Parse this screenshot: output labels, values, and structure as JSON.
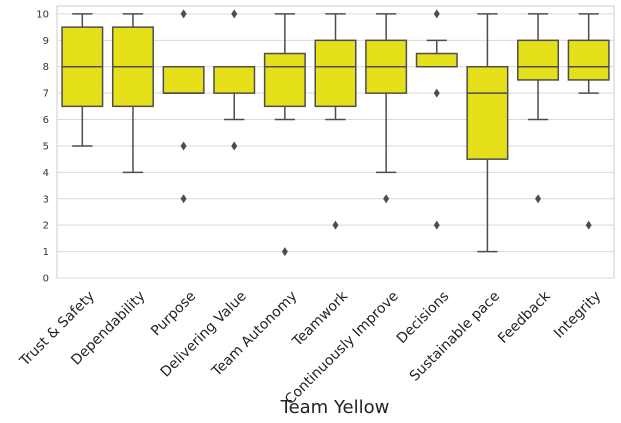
{
  "chart_data": {
    "type": "box",
    "title": "",
    "xlabel": "Team Yellow",
    "ylabel": "",
    "ylim": [
      0,
      10.3
    ],
    "yticks": [
      0,
      1,
      2,
      3,
      4,
      5,
      6,
      7,
      8,
      9,
      10
    ],
    "grid": true,
    "colors": {
      "box_fill": "#e5e01a",
      "box_edge": "#4d4d4d",
      "grid": "#d9d9d9"
    },
    "boxes": [
      {
        "label": "Trust & Safety",
        "q1": 6.5,
        "median": 8,
        "q3": 9.5,
        "whisker_low": 5,
        "whisker_high": 10,
        "outliers": []
      },
      {
        "label": "Dependability",
        "q1": 6.5,
        "median": 8,
        "q3": 9.5,
        "whisker_low": 4,
        "whisker_high": 10,
        "outliers": []
      },
      {
        "label": "Purpose",
        "q1": 7,
        "median": 7,
        "q3": 8,
        "whisker_low": 7,
        "whisker_high": 8,
        "outliers": [
          10,
          5,
          3
        ]
      },
      {
        "label": "Delivering Value",
        "q1": 7,
        "median": 8,
        "q3": 8,
        "whisker_low": 6,
        "whisker_high": 8,
        "outliers": [
          10,
          5
        ]
      },
      {
        "label": "Team Autonomy",
        "q1": 6.5,
        "median": 8,
        "q3": 8.5,
        "whisker_low": 6,
        "whisker_high": 10,
        "outliers": [
          1
        ]
      },
      {
        "label": "Teamwork",
        "q1": 6.5,
        "median": 8,
        "q3": 9,
        "whisker_low": 6,
        "whisker_high": 10,
        "outliers": [
          2
        ]
      },
      {
        "label": "Continuously Improve",
        "q1": 7,
        "median": 8,
        "q3": 9,
        "whisker_low": 4,
        "whisker_high": 10,
        "outliers": [
          3
        ]
      },
      {
        "label": "Decisions",
        "q1": 8,
        "median": 8,
        "q3": 8.5,
        "whisker_low": 8,
        "whisker_high": 9,
        "outliers": [
          10,
          7,
          2
        ]
      },
      {
        "label": "Sustainable pace",
        "q1": 4.5,
        "median": 7,
        "q3": 8,
        "whisker_low": 1,
        "whisker_high": 10,
        "outliers": []
      },
      {
        "label": "Feedback",
        "q1": 7.5,
        "median": 8,
        "q3": 9,
        "whisker_low": 6,
        "whisker_high": 10,
        "outliers": [
          3
        ]
      },
      {
        "label": "Integrity",
        "q1": 7.5,
        "median": 8,
        "q3": 9,
        "whisker_low": 7,
        "whisker_high": 10,
        "outliers": [
          2
        ]
      }
    ]
  }
}
